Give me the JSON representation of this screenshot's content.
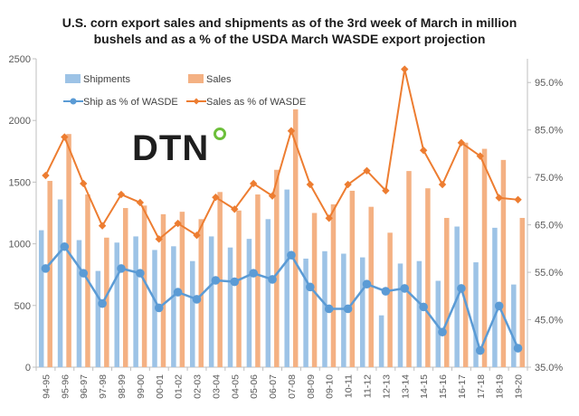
{
  "chart_data": {
    "type": "bar",
    "title_line1": "U.S. corn export sales and shipments as of the 3rd week of March in million",
    "title_line2": "bushels and as a % of the USDA March WASDE export projection",
    "categories": [
      "94-95",
      "95-96",
      "96-97",
      "97-98",
      "98-99",
      "99-00",
      "00-01",
      "01-02",
      "02-03",
      "03-04",
      "04-05",
      "05-06",
      "06-07",
      "07-08",
      "08-09",
      "09-10",
      "10-11",
      "11-12",
      "12-13",
      "13-14",
      "14-15",
      "15-16",
      "16-17",
      "17-18",
      "18-19",
      "19-20"
    ],
    "series": [
      {
        "name": "Shipments",
        "kind": "bar",
        "axis": "left",
        "color": "#9dc3e6",
        "values": [
          1110,
          1360,
          1030,
          780,
          1010,
          1060,
          950,
          980,
          860,
          1060,
          970,
          1040,
          1200,
          1440,
          880,
          940,
          920,
          890,
          420,
          840,
          860,
          700,
          1140,
          850,
          1130,
          670
        ]
      },
      {
        "name": "Sales",
        "kind": "bar",
        "axis": "left",
        "color": "#f4b183",
        "values": [
          1510,
          1890,
          1400,
          1050,
          1290,
          1310,
          1240,
          1260,
          1200,
          1420,
          1270,
          1400,
          1600,
          2090,
          1250,
          1320,
          1430,
          1300,
          1090,
          1590,
          1450,
          1210,
          1820,
          1770,
          1680,
          1210
        ]
      },
      {
        "name": "Ship as % of WASDE",
        "kind": "line",
        "axis": "right",
        "color": "#5b9bd5",
        "values": [
          0.558,
          0.604,
          0.548,
          0.484,
          0.558,
          0.548,
          0.475,
          0.508,
          0.493,
          0.533,
          0.53,
          0.548,
          0.535,
          0.586,
          0.519,
          0.473,
          0.473,
          0.525,
          0.51,
          0.516,
          0.477,
          0.424,
          0.516,
          0.385,
          0.479,
          0.39
        ]
      },
      {
        "name": "Sales as % of WASDE",
        "kind": "line",
        "axis": "right",
        "color": "#ed7d31",
        "values": [
          0.754,
          0.835,
          0.737,
          0.648,
          0.714,
          0.697,
          0.62,
          0.653,
          0.628,
          0.708,
          0.683,
          0.737,
          0.711,
          0.848,
          0.735,
          0.664,
          0.735,
          0.764,
          0.722,
          0.978,
          0.807,
          0.735,
          0.823,
          0.795,
          0.707,
          0.703
        ]
      }
    ],
    "left_axis": {
      "min": 0,
      "max": 2500,
      "ticks": [
        "0",
        "500",
        "1000",
        "1500",
        "2000",
        "2500"
      ]
    },
    "right_axis": {
      "min": 0.35,
      "max": 1.0,
      "ticks": [
        "35.0%",
        "45.0%",
        "55.0%",
        "65.0%",
        "75.0%",
        "85.0%",
        "95.0%"
      ]
    },
    "legend": {
      "placement": "top-left"
    },
    "gridlines": false
  },
  "logo": {
    "text": "DTN",
    "dot_color": "#6cbf3a"
  }
}
